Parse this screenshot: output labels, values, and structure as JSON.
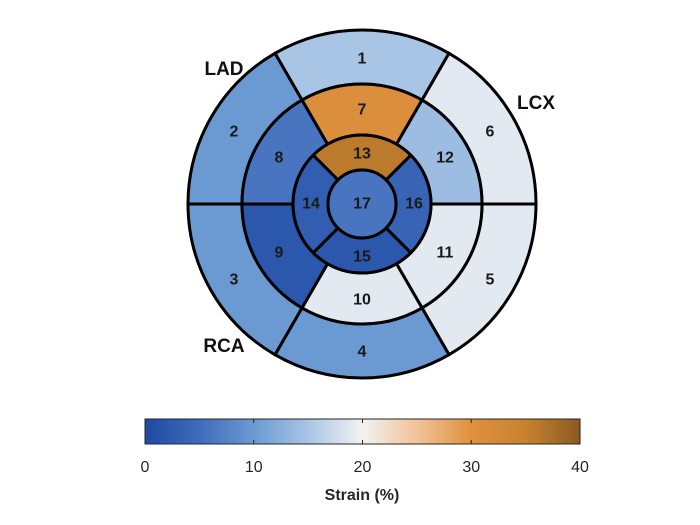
{
  "chart_data": {
    "type": "bullseye",
    "segments": [
      {
        "id": "1",
        "value": 15
      },
      {
        "id": "2",
        "value": 10
      },
      {
        "id": "3",
        "value": 10
      },
      {
        "id": "4",
        "value": 10
      },
      {
        "id": "5",
        "value": 19
      },
      {
        "id": "6",
        "value": 19
      },
      {
        "id": "7",
        "value": 31
      },
      {
        "id": "8",
        "value": 6
      },
      {
        "id": "9",
        "value": 2
      },
      {
        "id": "10",
        "value": 19
      },
      {
        "id": "11",
        "value": 19
      },
      {
        "id": "12",
        "value": 14
      },
      {
        "id": "13",
        "value": 36
      },
      {
        "id": "14",
        "value": 3
      },
      {
        "id": "15",
        "value": 2
      },
      {
        "id": "16",
        "value": 4
      },
      {
        "id": "17",
        "value": 6
      }
    ],
    "territories": [
      {
        "name": "LAD"
      },
      {
        "name": "LCX"
      },
      {
        "name": "RCA"
      }
    ],
    "colorbar": {
      "label": "Strain (%)",
      "range": [
        0,
        40
      ],
      "ticks": [
        "0",
        "10",
        "20",
        "30",
        "40"
      ],
      "colors": [
        {
          "at": 0,
          "color": "#1d4aa2"
        },
        {
          "at": 5,
          "color": "#3f6bbb"
        },
        {
          "at": 10,
          "color": "#6b9ad3"
        },
        {
          "at": 15,
          "color": "#a9c5e6"
        },
        {
          "at": 20,
          "color": "#f2f2f2"
        },
        {
          "at": 25,
          "color": "#f2c29b"
        },
        {
          "at": 30,
          "color": "#e0913e"
        },
        {
          "at": 35,
          "color": "#c8822f"
        },
        {
          "at": 40,
          "color": "#8a5a22"
        }
      ]
    }
  }
}
